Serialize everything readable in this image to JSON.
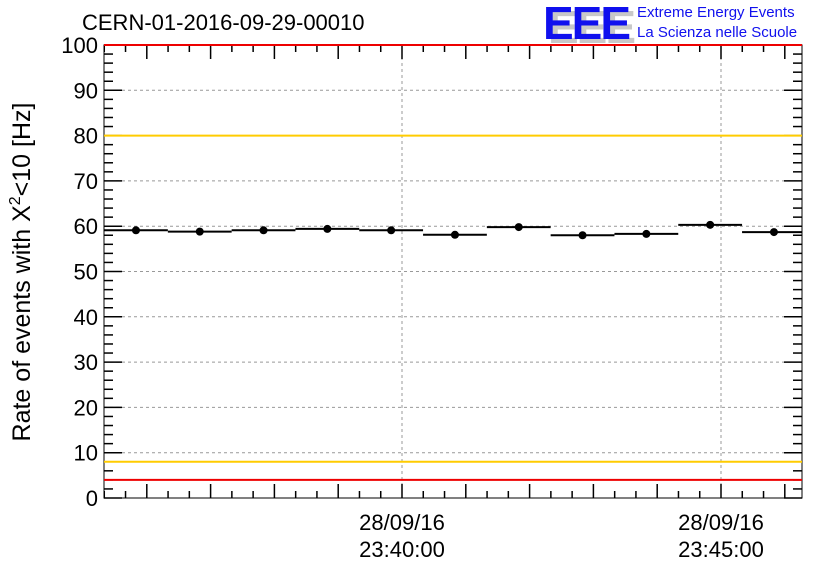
{
  "chart_data": {
    "type": "scatter",
    "title": "CERN-01-2016-09-29-00010",
    "xlabel": "",
    "ylabel": "Rate of events with X²<10 [Hz]",
    "ylabel_parts": {
      "pre": "Rate of events with X",
      "sup": "2",
      "post": "<10 [Hz]"
    },
    "ylim": [
      0,
      100
    ],
    "yticks": [
      0,
      10,
      20,
      30,
      40,
      50,
      60,
      70,
      80,
      90,
      100
    ],
    "xlim_minutes": [
      -4.67,
      6.25
    ],
    "xtick_labels": [
      {
        "date": "28/09/16",
        "time": "23:40:00",
        "minutes": 0
      },
      {
        "date": "28/09/16",
        "time": "23:45:00",
        "minutes": 5
      }
    ],
    "grid": true,
    "points": [
      {
        "t": -4.17,
        "y": 59.1
      },
      {
        "t": -3.17,
        "y": 58.8
      },
      {
        "t": -2.17,
        "y": 59.1
      },
      {
        "t": -1.17,
        "y": 59.4
      },
      {
        "t": -0.17,
        "y": 59.1
      },
      {
        "t": 0.83,
        "y": 58.1
      },
      {
        "t": 1.83,
        "y": 59.8
      },
      {
        "t": 2.83,
        "y": 58.0
      },
      {
        "t": 3.83,
        "y": 58.3
      },
      {
        "t": 4.83,
        "y": 60.3
      },
      {
        "t": 5.83,
        "y": 58.7
      }
    ],
    "bin_width_minutes": 1,
    "reference_lines": [
      {
        "y": 100,
        "color": "#ee0000"
      },
      {
        "y": 80,
        "color": "#ffcc00"
      },
      {
        "y": 8,
        "color": "#ffcc00"
      },
      {
        "y": 4,
        "color": "#ee0000"
      }
    ]
  },
  "logo": {
    "text": "EEE",
    "line1": "Extreme Energy Events",
    "line2": "La Scienza nelle Scuole"
  }
}
